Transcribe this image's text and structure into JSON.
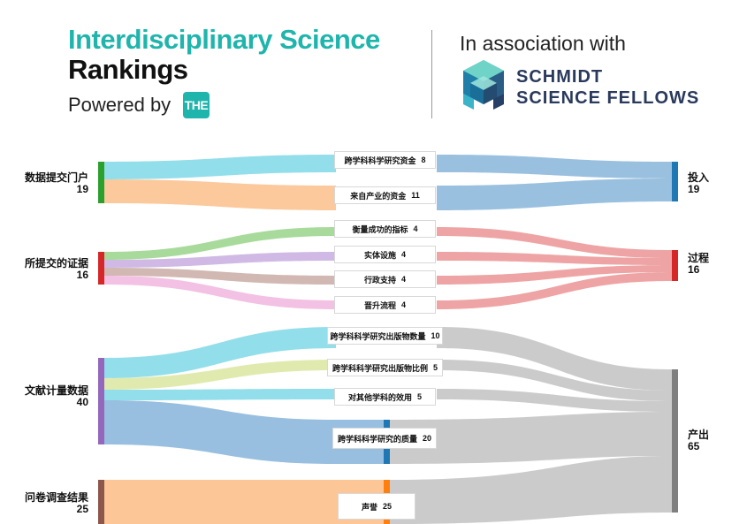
{
  "header": {
    "title_line1": "Interdisciplinary Science",
    "title_line2": "Rankings",
    "powered_by": "Powered by",
    "the_logo_text": "THE",
    "association": "In association with",
    "partner_line1": "SCHMIDT",
    "partner_line2": "SCIENCE FELLOWS",
    "brand_color": "#1fb5ac",
    "partner_color": "#2a3a5c"
  },
  "sankey": {
    "sources": [
      {
        "label": "数据提交门户",
        "value": "19",
        "color": "#2ca02c"
      },
      {
        "label": "所提交的证据",
        "value": "16",
        "color": "#d62728"
      },
      {
        "label": "文献计量数据",
        "value": "40",
        "color": "#9467bd"
      },
      {
        "label": "问卷调查结果",
        "value": "25",
        "color": "#8c564b"
      }
    ],
    "indicators": [
      {
        "label": "跨学科科学研究资金",
        "value": "8"
      },
      {
        "label": "来自产业的资金",
        "value": "11"
      },
      {
        "label": "衡量成功的指标",
        "value": "4"
      },
      {
        "label": "实体设施",
        "value": "4"
      },
      {
        "label": "行政支持",
        "value": "4"
      },
      {
        "label": "晋升流程",
        "value": "4"
      },
      {
        "label": "跨学科科学研究出版物数量",
        "value": "10"
      },
      {
        "label": "跨学科科学研究出版物比例",
        "value": "5"
      },
      {
        "label": "对其他学科的效用",
        "value": "5"
      },
      {
        "label": "跨学科科学研究的质量",
        "value": "20"
      },
      {
        "label": "声誉",
        "value": "25"
      }
    ],
    "pillars": [
      {
        "label": "投入",
        "value": "19",
        "color": "#1f77b4"
      },
      {
        "label": "过程",
        "value": "16",
        "color": "#d62728"
      },
      {
        "label": "产出",
        "value": "65",
        "color": "#7f7f7f"
      }
    ],
    "link_colors": {
      "cyan": "#7fd8e6",
      "orange": "#fcc08c",
      "green": "#98d48a",
      "purple": "#c8aee0",
      "brown": "#c9aca4",
      "pink": "#f0b6de",
      "olive": "#dce6a0",
      "steel": "#8db8dc",
      "right_input": "#8fb9dd",
      "right_process": "#ec9a9a",
      "right_output": "#c8c8c8"
    }
  }
}
